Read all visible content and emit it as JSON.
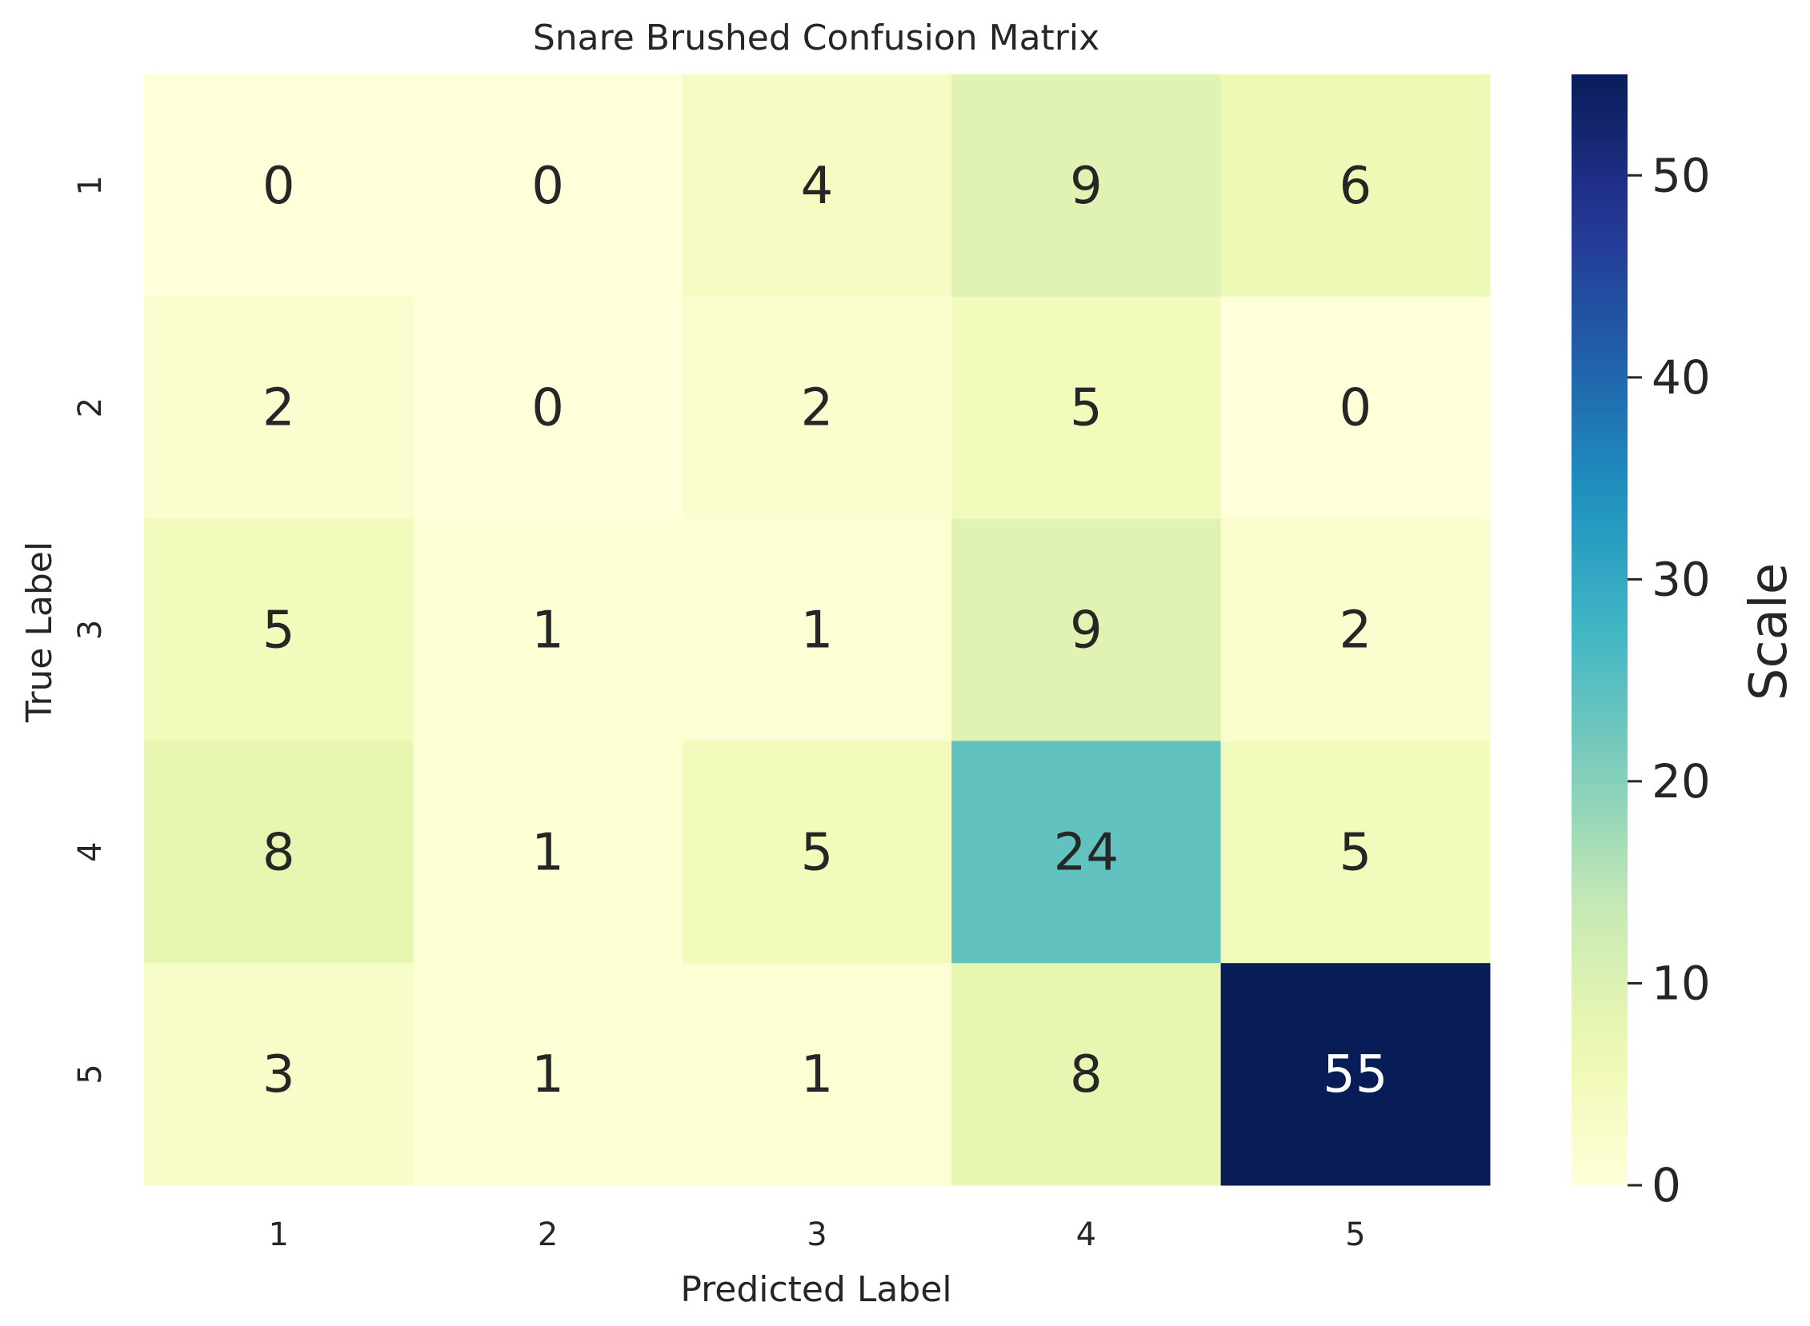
{
  "chart_data": {
    "type": "heatmap",
    "title": "Snare Brushed Confusion Matrix",
    "xlabel": "Predicted Label",
    "ylabel": "True Label",
    "x_categories": [
      "1",
      "2",
      "3",
      "4",
      "5"
    ],
    "y_categories": [
      "1",
      "2",
      "3",
      "4",
      "5"
    ],
    "matrix": [
      [
        0,
        0,
        4,
        9,
        6
      ],
      [
        2,
        0,
        2,
        5,
        0
      ],
      [
        5,
        1,
        1,
        9,
        2
      ],
      [
        8,
        1,
        5,
        24,
        5
      ],
      [
        3,
        1,
        1,
        8,
        55
      ]
    ],
    "colorbar": {
      "label": "Scale",
      "range": [
        0,
        55
      ],
      "ticks": [
        0,
        10,
        20,
        30,
        40,
        50
      ],
      "colormap": "YlGnBu"
    },
    "grid": false
  }
}
